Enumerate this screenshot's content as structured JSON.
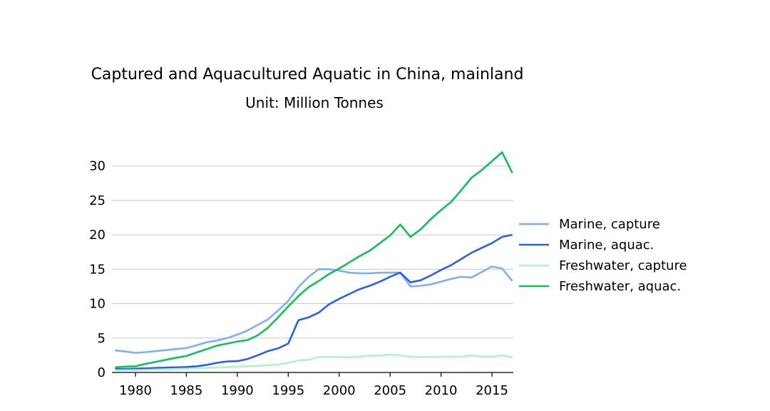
{
  "chart_data": {
    "type": "line",
    "title": "Captured and Aquacultured Aquatic in China, mainland",
    "subtitle": "Unit: Million Tonnes",
    "xlabel": "",
    "ylabel": "",
    "xlim": [
      1978,
      2017
    ],
    "ylim": [
      0,
      33
    ],
    "grid": "horizontal",
    "legend_position": "right",
    "x_ticks": [
      1980,
      1985,
      1990,
      1995,
      2000,
      2005,
      2010,
      2015
    ],
    "y_ticks": [
      0,
      5,
      10,
      15,
      20,
      25,
      30
    ],
    "x": [
      1978,
      1979,
      1980,
      1981,
      1982,
      1983,
      1984,
      1985,
      1986,
      1987,
      1988,
      1989,
      1990,
      1991,
      1992,
      1993,
      1994,
      1995,
      1996,
      1997,
      1998,
      1999,
      2000,
      2001,
      2002,
      2003,
      2004,
      2005,
      2006,
      2007,
      2008,
      2009,
      2010,
      2011,
      2012,
      2013,
      2014,
      2015,
      2016,
      2017
    ],
    "series": [
      {
        "name": "Marine, capture",
        "color": "#7eaef5",
        "values": [
          3.2,
          3.05,
          2.85,
          2.95,
          3.1,
          3.25,
          3.4,
          3.55,
          3.95,
          4.4,
          4.65,
          5.0,
          5.5,
          6.1,
          6.9,
          7.7,
          9.0,
          10.4,
          12.4,
          13.9,
          15.0,
          15.0,
          14.8,
          14.5,
          14.4,
          14.4,
          14.5,
          14.5,
          14.5,
          12.5,
          12.6,
          12.8,
          13.2,
          13.6,
          13.9,
          13.8,
          14.6,
          15.4,
          15.1,
          13.3
        ]
      },
      {
        "name": "Marine, aquac.",
        "color": "#2a5fe8",
        "values": [
          0.5,
          0.5,
          0.55,
          0.6,
          0.65,
          0.7,
          0.75,
          0.8,
          0.9,
          1.1,
          1.4,
          1.6,
          1.65,
          1.95,
          2.5,
          3.1,
          3.5,
          4.2,
          7.6,
          8.0,
          8.7,
          9.9,
          10.7,
          11.4,
          12.1,
          12.6,
          13.2,
          13.9,
          14.5,
          13.1,
          13.4,
          14.1,
          14.9,
          15.6,
          16.5,
          17.4,
          18.1,
          18.8,
          19.7,
          20.0
        ]
      },
      {
        "name": "Freshwater, capture",
        "color": "#b3f1ca",
        "values": [
          0.3,
          0.32,
          0.33,
          0.37,
          0.42,
          0.46,
          0.5,
          0.55,
          0.6,
          0.67,
          0.72,
          0.77,
          0.85,
          0.9,
          0.95,
          1.05,
          1.15,
          1.4,
          1.75,
          1.85,
          2.25,
          2.25,
          2.25,
          2.2,
          2.3,
          2.45,
          2.45,
          2.6,
          2.5,
          2.3,
          2.25,
          2.25,
          2.3,
          2.25,
          2.3,
          2.5,
          2.3,
          2.3,
          2.5,
          2.2
        ]
      },
      {
        "name": "Freshwater, aquac.",
        "color": "#12c156",
        "values": [
          0.75,
          0.85,
          0.9,
          1.25,
          1.55,
          1.85,
          2.15,
          2.4,
          2.9,
          3.4,
          3.9,
          4.2,
          4.5,
          4.7,
          5.4,
          6.5,
          8.0,
          9.6,
          11.1,
          12.4,
          13.3,
          14.3,
          15.1,
          16.0,
          16.9,
          17.7,
          18.8,
          19.9,
          21.5,
          19.7,
          20.8,
          22.3,
          23.6,
          24.8,
          26.5,
          28.3,
          29.4,
          30.7,
          32.0,
          29.0
        ]
      }
    ]
  }
}
